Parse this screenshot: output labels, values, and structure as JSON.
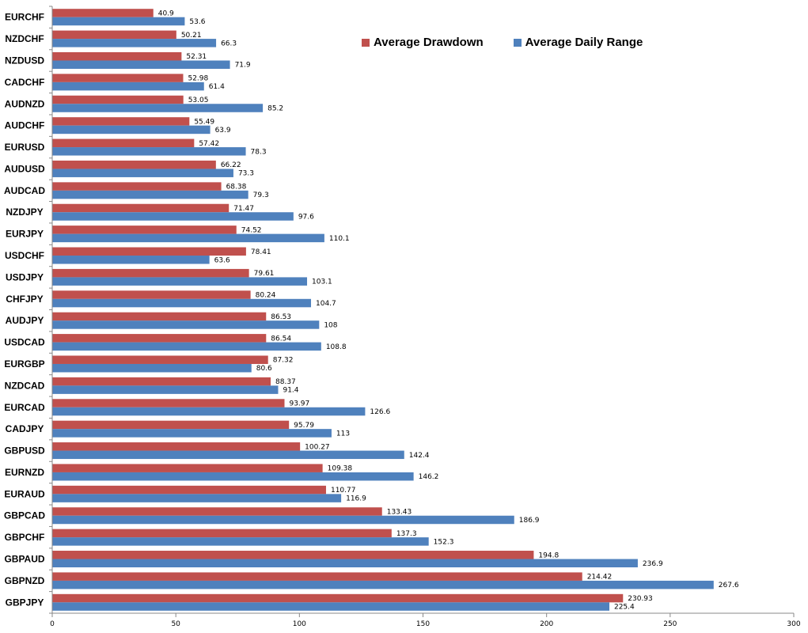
{
  "chart_data": {
    "type": "bar",
    "orientation": "horizontal",
    "categories": [
      "EURCHF",
      "NZDCHF",
      "NZDUSD",
      "CADCHF",
      "AUDNZD",
      "AUDCHF",
      "EURUSD",
      "AUDUSD",
      "AUDCAD",
      "NZDJPY",
      "EURJPY",
      "USDCHF",
      "USDJPY",
      "CHFJPY",
      "AUDJPY",
      "USDCAD",
      "EURGBP",
      "NZDCAD",
      "EURCAD",
      "CADJPY",
      "GBPUSD",
      "EURNZD",
      "EURAUD",
      "GBPCAD",
      "GBPCHF",
      "GBPAUD",
      "GBPNZD",
      "GBPJPY"
    ],
    "series": [
      {
        "name": "Average Drawdown",
        "color": "#c0504d",
        "values": [
          40.9,
          50.21,
          52.31,
          52.98,
          53.05,
          55.49,
          57.42,
          66.22,
          68.38,
          71.47,
          74.52,
          78.41,
          79.61,
          80.24,
          86.53,
          86.54,
          87.32,
          88.37,
          93.97,
          95.79,
          100.27,
          109.38,
          110.77,
          133.43,
          137.3,
          194.8,
          214.42,
          230.93
        ],
        "labels": [
          "40.9",
          "50.21",
          "52.31",
          "52.98",
          "53.05",
          "55.49",
          "57.42",
          "66.22",
          "68.38",
          "71.47",
          "74.52",
          "78.41",
          "79.61",
          "80.24",
          "86.53",
          "86.54",
          "87.32",
          "88.37",
          "93.97",
          "95.79",
          "100.27",
          "109.38",
          "110.77",
          "133.43",
          "137.3",
          "194.8",
          "214.42",
          "230.93"
        ]
      },
      {
        "name": "Average Daily Range",
        "color": "#4f81bd",
        "values": [
          53.6,
          66.3,
          71.9,
          61.4,
          85.2,
          63.9,
          78.3,
          73.3,
          79.3,
          97.6,
          110.1,
          63.6,
          103.1,
          104.7,
          108,
          108.8,
          80.6,
          91.4,
          126.6,
          113,
          142.4,
          146.2,
          116.9,
          186.9,
          152.3,
          236.9,
          267.6,
          225.4
        ],
        "labels": [
          "53.6",
          "66.3",
          "71.9",
          "61.4",
          "85.2",
          "63.9",
          "78.3",
          "73.3",
          "79.3",
          "97.6",
          "110.1",
          "63.6",
          "103.1",
          "104.7",
          "108",
          "108.8",
          "80.6",
          "91.4",
          "126.6",
          "113",
          "142.4",
          "146.2",
          "116.9",
          "186.9",
          "152.3",
          "236.9",
          "267.6",
          "225.4"
        ]
      }
    ],
    "xlim": [
      0,
      300
    ],
    "x_ticks": [
      "0",
      "50",
      "100",
      "150",
      "200",
      "250",
      "300"
    ],
    "title": "",
    "xlabel": "",
    "ylabel": "",
    "grid": false,
    "legend_position": "top-right"
  }
}
